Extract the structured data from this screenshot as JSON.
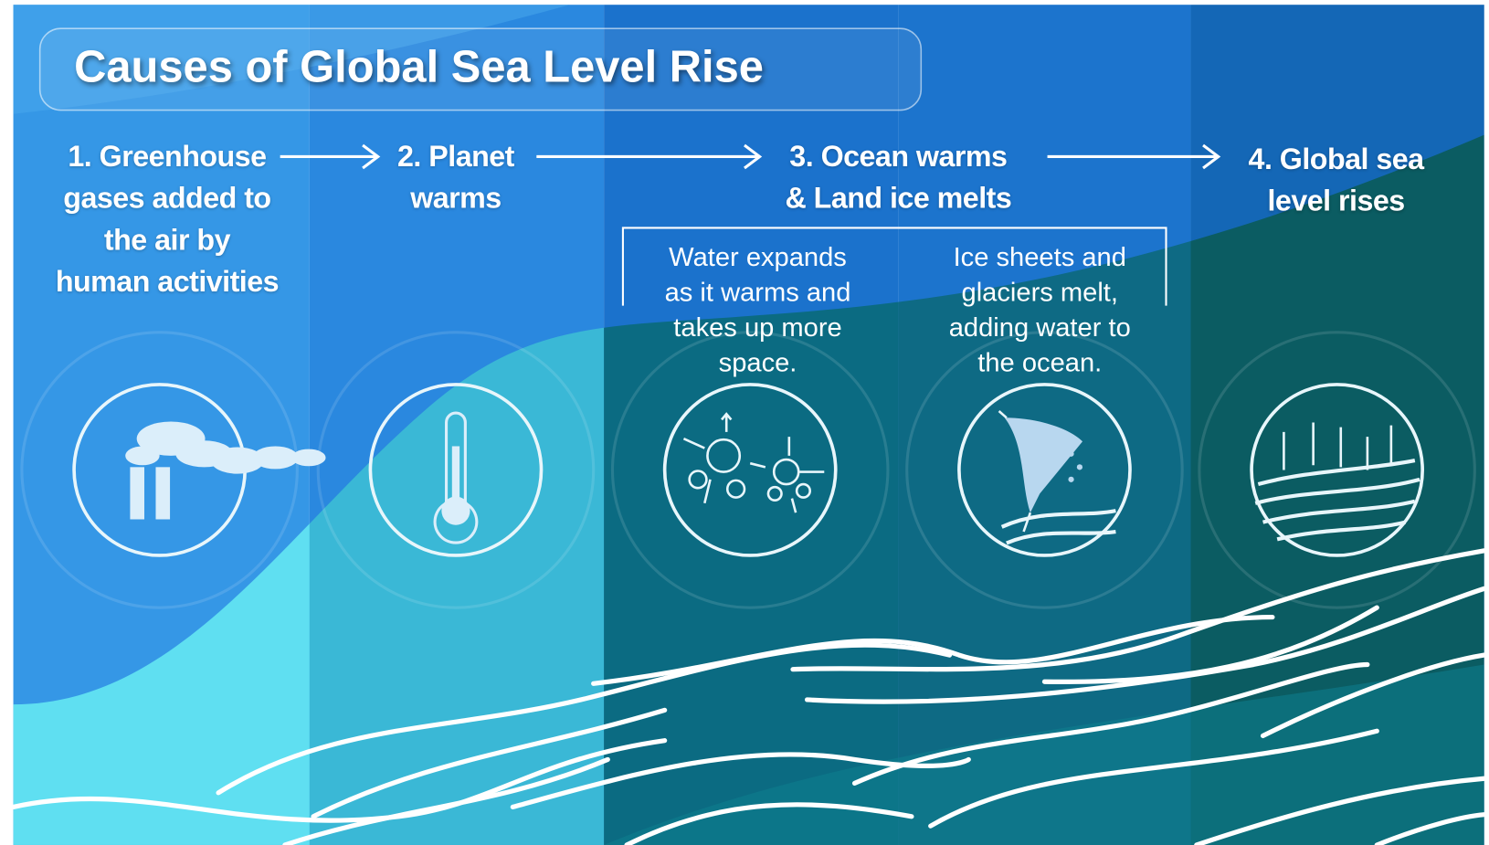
{
  "title": "Causes of Global Sea Level Rise",
  "steps": [
    {
      "label": "1. Greenhouse\ngases added to\nthe air by\nhuman activities"
    },
    {
      "label": "2. Planet\nwarms"
    },
    {
      "label": "3. Ocean warms\n& Land ice melts"
    },
    {
      "label": "4. Global sea\nlevel rises"
    }
  ],
  "details": [
    "Water expands\nas it warms and\ntakes up more\nspace.",
    "Ice sheets and\nglaciers melt,\nadding water to\nthe ocean."
  ]
}
